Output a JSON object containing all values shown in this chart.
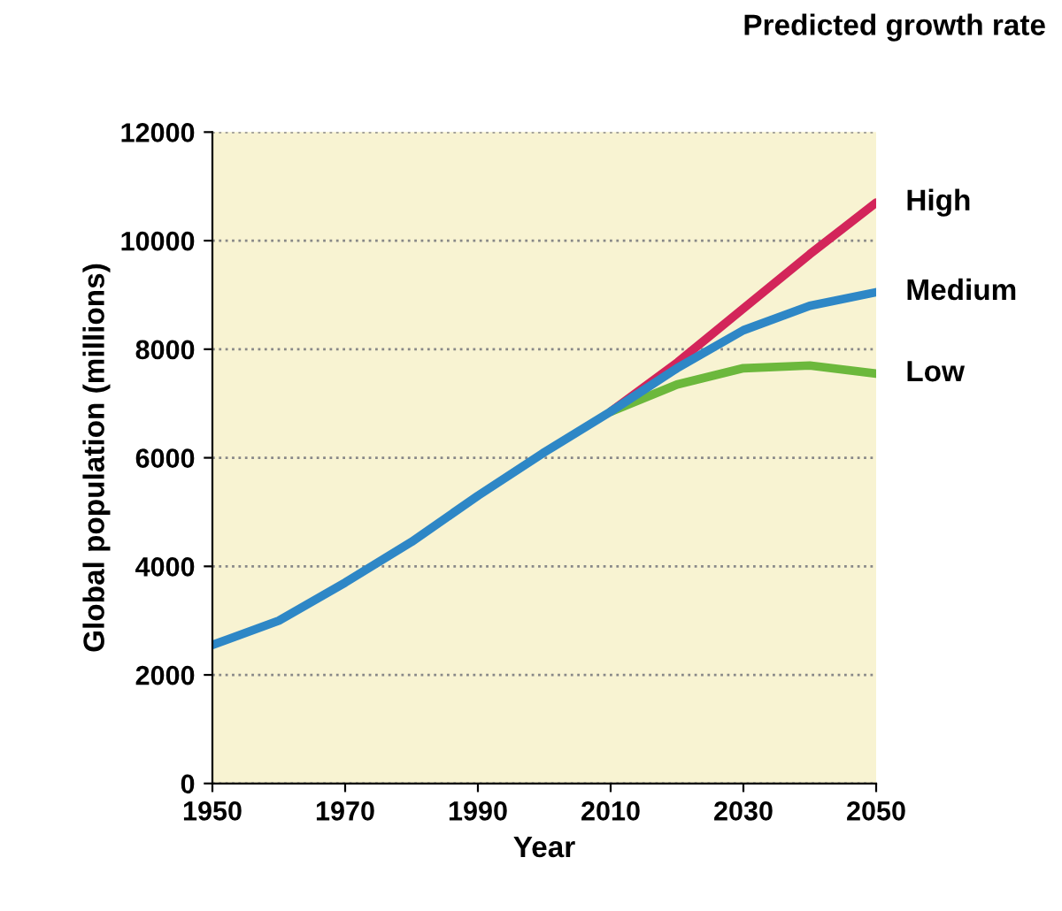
{
  "chart_data": {
    "type": "line",
    "xlabel": "Year",
    "ylabel": "Global population (millions)",
    "legend_title": "Predicted growth rate",
    "xlim": [
      1950,
      2050
    ],
    "xticks": [
      1950,
      1970,
      1990,
      2010,
      2030,
      2050
    ],
    "ylim": [
      0,
      12000
    ],
    "yticks": [
      0,
      2000,
      4000,
      6000,
      8000,
      10000,
      12000
    ],
    "grid": "y",
    "line_style": "solid",
    "marker": "none",
    "series": [
      {
        "name": "High",
        "color": "#d3255a",
        "x": [
          2010,
          2020,
          2030,
          2040,
          2050
        ],
        "values": [
          6850,
          7750,
          8750,
          9750,
          10700
        ]
      },
      {
        "name": "Low",
        "color": "#6cb83c",
        "x": [
          2010,
          2020,
          2030,
          2040,
          2050
        ],
        "values": [
          6850,
          7350,
          7650,
          7700,
          7550
        ]
      },
      {
        "name": "Medium",
        "color": "#2e87c6",
        "x": [
          1950,
          1960,
          1970,
          1980,
          1990,
          2000,
          2010,
          2020,
          2030,
          2040,
          2050
        ],
        "values": [
          2550,
          3000,
          3700,
          4450,
          5300,
          6100,
          6850,
          7650,
          8350,
          8800,
          9050
        ]
      }
    ]
  }
}
